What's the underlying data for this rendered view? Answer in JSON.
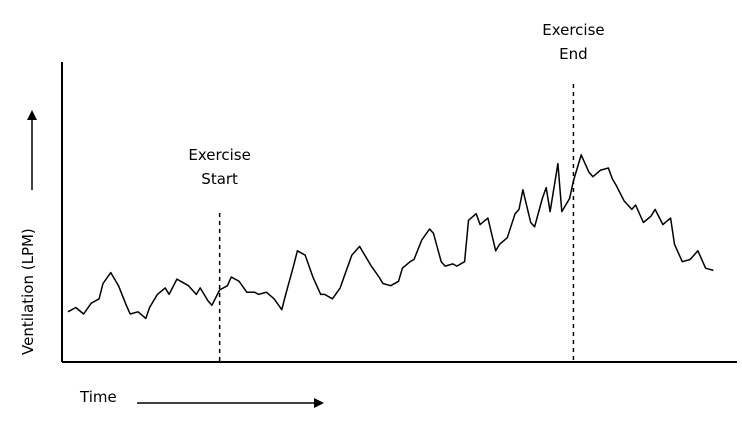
{
  "chart_data": {
    "type": "line",
    "title": "",
    "xlabel": "Time",
    "ylabel": "Ventilation (LPM)",
    "grid": false,
    "legend": "none",
    "line_color": "#000000",
    "axis_ticks": false,
    "xlim": [
      0,
      100
    ],
    "ylim": [
      0,
      100
    ],
    "x": [
      0,
      1.2,
      2.4,
      3.6,
      4.8,
      5.4,
      6.6,
      7.8,
      9.0,
      9.6,
      10.8,
      12.0,
      12.6,
      13.8,
      15.0,
      15.6,
      16.8,
      17.4,
      18.6,
      19.8,
      20.4,
      21.6,
      22.2,
      23.4,
      24.6,
      25.2,
      26.4,
      27.6,
      28.8,
      29.4,
      30.6,
      31.8,
      33.0,
      33.6,
      34.8,
      35.4,
      36.6,
      37.8,
      39.0,
      39.6,
      40.8,
      42.0,
      42.6,
      43.8,
      45.0,
      45.6,
      46.8,
      48.0,
      48.6,
      49.8,
      51.0,
      51.6,
      52.8,
      53.4,
      54.6,
      55.8,
      56.4,
      57.6,
      58.2,
      59.4,
      60.0,
      61.2,
      61.8,
      63.0,
      63.6,
      64.8,
      66.0,
      66.6,
      67.8,
      69.0,
      69.6,
      70.2,
      71.4,
      72.0,
      73.2,
      73.8,
      74.4,
      75.6,
      76.2,
      77.4,
      78.0,
      79.2,
      80.4,
      81.0,
      82.2,
      83.4,
      84.0,
      84.6,
      85.8,
      87.0,
      87.6,
      88.8,
      90.0,
      90.6,
      91.8,
      93.0,
      93.6,
      94.8,
      96.0,
      97.2,
      98.4,
      99.6
    ],
    "values": [
      12,
      14,
      11,
      16,
      18,
      25,
      30,
      24,
      15,
      11,
      12,
      9,
      14,
      20,
      23,
      20,
      27,
      26,
      24,
      20,
      23,
      17,
      15,
      22,
      24,
      28,
      26,
      21,
      21,
      20,
      21,
      18,
      13,
      20,
      33,
      40,
      38,
      28,
      20,
      20,
      18,
      23,
      28,
      38,
      42,
      39,
      33,
      28,
      25,
      24,
      26,
      32,
      35,
      36,
      45,
      50,
      48,
      35,
      33,
      34,
      33,
      35,
      54,
      57,
      52,
      55,
      40,
      43,
      46,
      57,
      59,
      68,
      53,
      51,
      64,
      69,
      58,
      80,
      58,
      64,
      72,
      84,
      76,
      74,
      77,
      78,
      73,
      70,
      63,
      59,
      61,
      53,
      56,
      59,
      52,
      55,
      43,
      35,
      36,
      40,
      32,
      31
    ],
    "annotations": [
      {
        "label_line1": "Exercise",
        "label_line2": "Start",
        "x": 23.4,
        "style": "dashed"
      },
      {
        "label_line1": "Exercise",
        "label_line2": "End",
        "x": 78.0,
        "style": "dashed"
      }
    ]
  }
}
